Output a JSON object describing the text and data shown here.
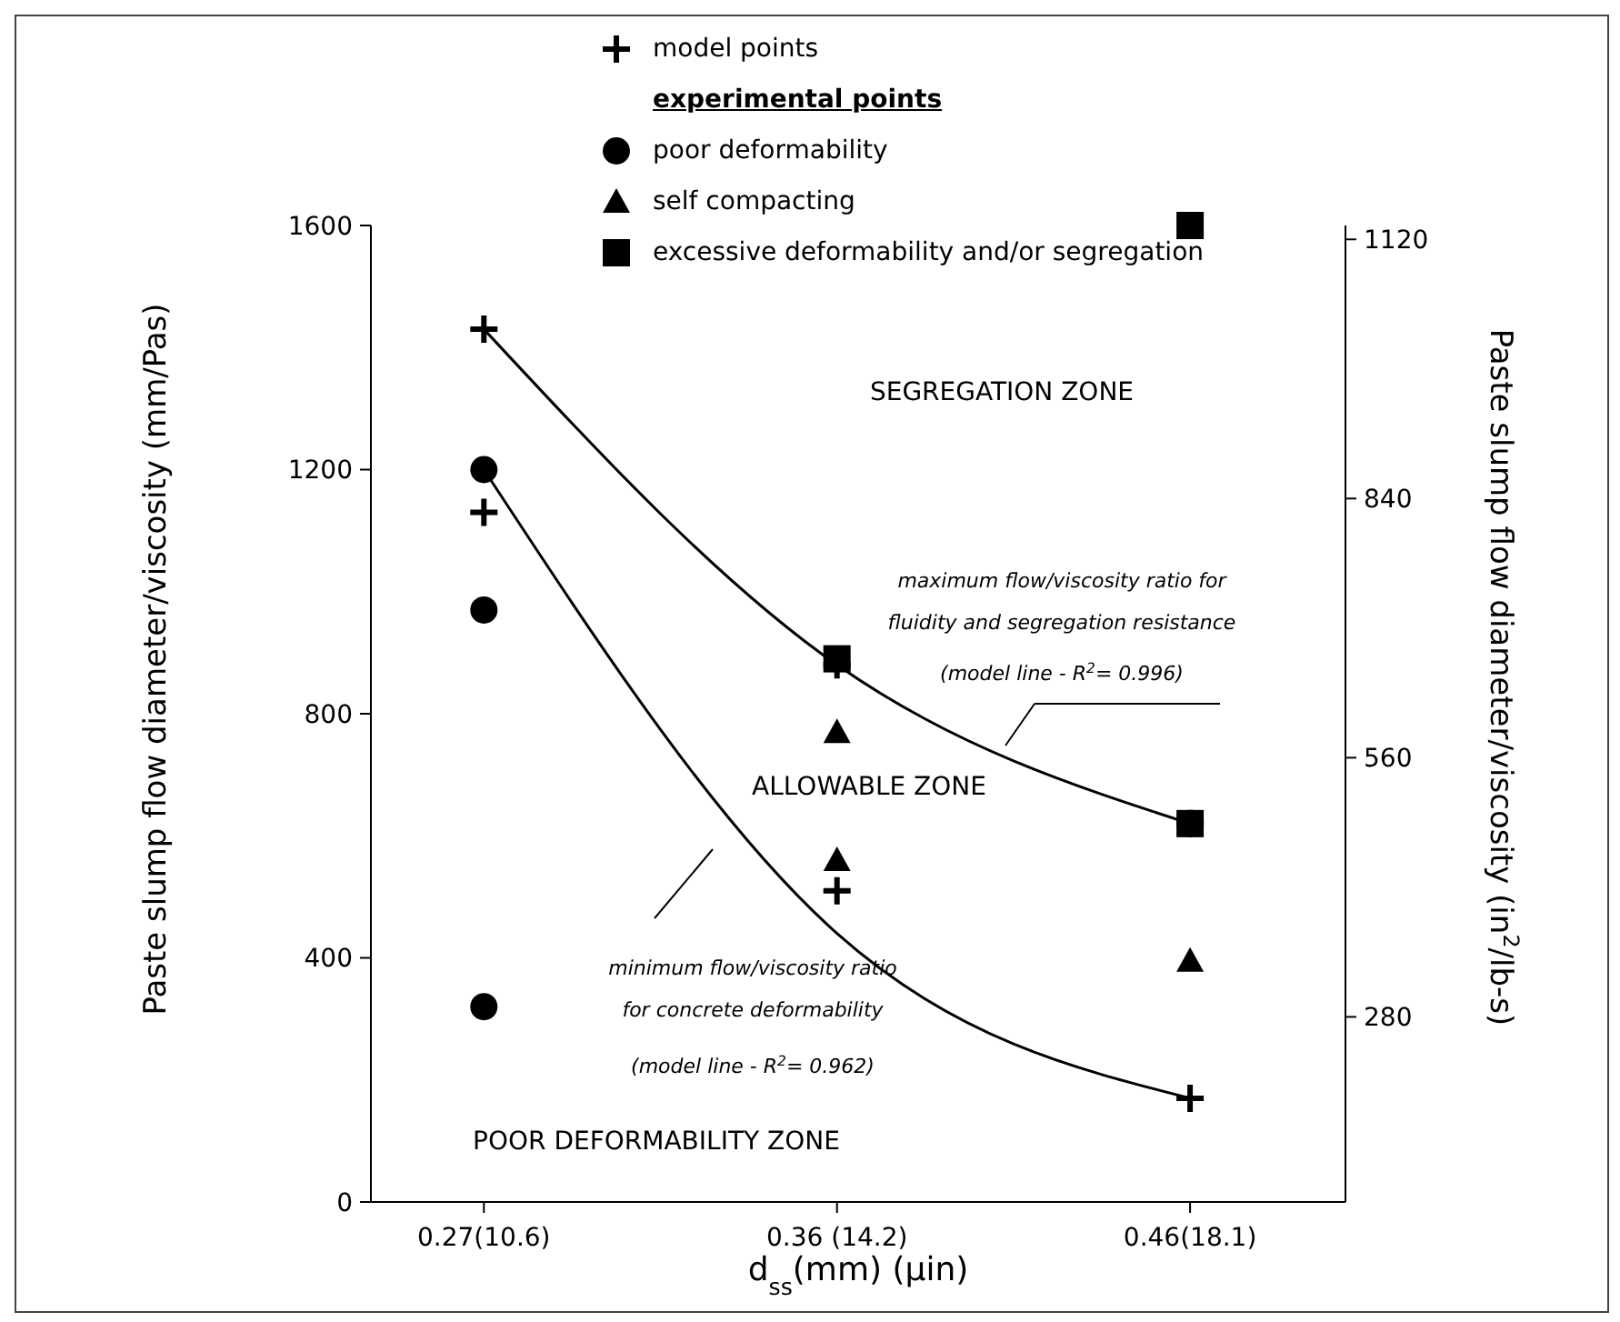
{
  "chart_data": {
    "type": "scatter",
    "categories": [
      "0.27(10.6)",
      "0.36 (14.2)",
      "0.46(18.1)"
    ],
    "xlabel": "d$_{ss}$(mm)   (μin)",
    "ylabel": "Paste slump flow diameter/viscosity (mm/Pas)",
    "y2label": "Paste slump flow diameter/viscosity (in$^{2}$/lb-s)",
    "ylim": [
      0,
      1600
    ],
    "yticks": [
      0,
      400,
      800,
      1200,
      1600
    ],
    "y2lim": [
      80,
      1135
    ],
    "y2ticks": [
      280,
      560,
      840,
      1120
    ],
    "legend": "top",
    "legend_title": "experimental points",
    "series": [
      {
        "name": "model points",
        "marker": "cross",
        "color": "#000000",
        "x": [
          "0.27(10.6)",
          "0.27(10.6)",
          "0.36 (14.2)",
          "0.36 (14.2)",
          "0.46(18.1)",
          "0.46(18.1)"
        ],
        "values": [
          1430,
          1130,
          880,
          510,
          620,
          170
        ]
      },
      {
        "name": "poor deformability",
        "marker": "circle",
        "color": "#000000",
        "x": [
          "0.27(10.6)",
          "0.27(10.6)",
          "0.27(10.6)"
        ],
        "values": [
          1200,
          970,
          320
        ]
      },
      {
        "name": "self compacting",
        "marker": "triangle",
        "color": "#000000",
        "x": [
          "0.36 (14.2)",
          "0.36 (14.2)",
          "0.46(18.1)"
        ],
        "values": [
          770,
          560,
          395
        ]
      },
      {
        "name": "excessive deformability and/or segregation",
        "marker": "square",
        "color": "#000000",
        "x": [
          "0.36 (14.2)",
          "0.46(18.1)",
          "0.46(18.1)"
        ],
        "values": [
          890,
          620,
          1600
        ]
      },
      {
        "type": "line",
        "marker": "none",
        "line_style": "solid",
        "color": "#000000",
        "x": [
          "0.27(10.6)",
          "0.36 (14.2)",
          "0.46(18.1)"
        ],
        "values": [
          1430,
          880,
          620
        ]
      },
      {
        "type": "line",
        "marker": "none",
        "line_style": "solid",
        "color": "#000000",
        "x": [
          "0.27(10.6)",
          "0.36 (14.2)",
          "0.46(18.1)"
        ],
        "values": [
          1200,
          440,
          170
        ]
      }
    ],
    "annotations": [
      "SEGREGATION ZONE",
      "ALLOWABLE ZONE",
      "POOR DEFORMABILITY ZONE",
      "maximum flow/viscosity ratio for",
      "fluidity and segregation resistance",
      "(model line - R$^{2}$= 0.996)",
      "minimum flow/viscosity ratio",
      "for concrete deformability",
      "(model line - R$^{2}$= 0.962)"
    ]
  }
}
